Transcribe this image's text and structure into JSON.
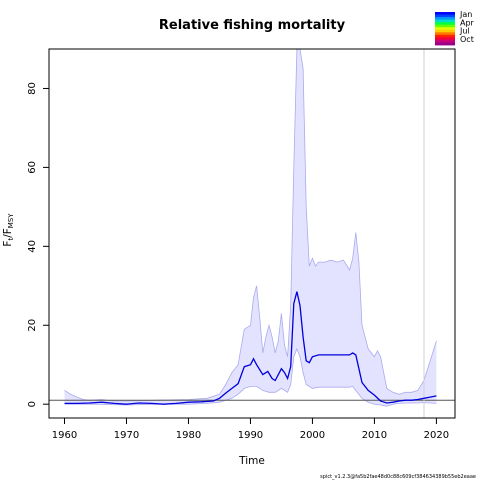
{
  "chart_data": {
    "type": "line",
    "title": "Relative fishing mortality",
    "xlabel": "Time",
    "ylabel": {
      "base": "F",
      "base_sub": "t",
      "sep": "/F",
      "sep_sub": "MSY"
    },
    "xlim": [
      1957.5,
      2023
    ],
    "ylim": [
      -3.5,
      90
    ],
    "xticks": [
      1960,
      1970,
      1980,
      1990,
      2000,
      2010,
      2020
    ],
    "yticks": [
      0,
      20,
      40,
      60,
      80
    ],
    "vline_x": 2018,
    "reference_line_y": 1,
    "colors": {
      "estimate": "#0000dd",
      "ci_fill": "#e3e3ff",
      "ci_line": "#aaaaee",
      "refline": "#555555",
      "vline": "#cfcfd8"
    },
    "series": [
      {
        "role": "estimate",
        "x": [
          1960,
          1962,
          1964,
          1966,
          1968,
          1970,
          1972,
          1974,
          1976,
          1978,
          1980,
          1982,
          1984,
          1985,
          1986,
          1987,
          1988,
          1989,
          1990,
          1990.5,
          1991,
          1992,
          1992.8,
          1993.5,
          1994,
          1995,
          1995.5,
          1996,
          1996.5,
          1997,
          1997.5,
          1998,
          1998.5,
          1999,
          1999.5,
          2000,
          2001,
          2002,
          2003,
          2004,
          2005,
          2006,
          2006.5,
          2007,
          2007.5,
          2008,
          2009,
          2010,
          2011,
          2012,
          2013,
          2014,
          2015,
          2016,
          2017,
          2018,
          2019,
          2020
        ],
        "y": [
          0.2,
          0.2,
          0.3,
          0.5,
          0.2,
          0.0,
          0.3,
          0.2,
          0.0,
          0.2,
          0.5,
          0.6,
          0.8,
          1.5,
          2.8,
          4.0,
          5.2,
          9.5,
          10.0,
          11.5,
          10.0,
          7.5,
          8.3,
          6.5,
          6.0,
          9.0,
          8.0,
          6.5,
          9.5,
          25.5,
          28.5,
          25.0,
          17.0,
          11.0,
          10.5,
          12.0,
          12.5,
          12.5,
          12.5,
          12.5,
          12.5,
          12.5,
          13.0,
          12.5,
          9.0,
          5.5,
          3.5,
          2.3,
          0.8,
          0.3,
          0.5,
          0.8,
          1.0,
          1.0,
          1.2,
          1.5,
          1.8,
          2.1
        ]
      },
      {
        "role": "ci_upper",
        "x": [
          1960,
          1961,
          1962,
          1963,
          1964,
          1966,
          1968,
          1970,
          1975,
          1980,
          1983,
          1985,
          1986,
          1987,
          1988,
          1989,
          1990,
          1990.5,
          1991,
          1991.5,
          1992,
          1992.5,
          1993,
          1993.5,
          1994,
          1994.5,
          1995,
          1995.5,
          1996,
          1996.5,
          1997,
          1997.5,
          1998,
          1998.5,
          1999,
          1999.5,
          2000,
          2000.5,
          2001,
          2002,
          2003,
          2004,
          2005,
          2006,
          2006.5,
          2007,
          2007.5,
          2008,
          2009,
          2010,
          2010.5,
          2011,
          2012,
          2013,
          2014,
          2015,
          2016,
          2017,
          2018,
          2019,
          2020
        ],
        "y": [
          3.5,
          2.5,
          1.8,
          1.2,
          1.0,
          1.2,
          0.8,
          0.8,
          1.0,
          1.2,
          1.5,
          2.5,
          5.0,
          8.0,
          10.0,
          19.0,
          20.0,
          27.0,
          30.0,
          22.0,
          13.0,
          17.0,
          20.0,
          17.0,
          13.0,
          16.0,
          23.0,
          15.0,
          12.0,
          25.0,
          60.0,
          90.0,
          90.0,
          85.0,
          50.0,
          35.0,
          37.0,
          35.0,
          36.0,
          36.0,
          36.5,
          36.0,
          36.5,
          34.0,
          37.0,
          43.5,
          36.0,
          20.0,
          14.0,
          12.0,
          13.5,
          12.0,
          4.0,
          3.0,
          2.5,
          3.0,
          3.0,
          3.5,
          6.0,
          11.0,
          16.0
        ]
      },
      {
        "role": "ci_lower",
        "x": [
          1960,
          1965,
          1970,
          1975,
          1980,
          1983,
          1985,
          1986,
          1987,
          1988,
          1989,
          1990,
          1991,
          1992,
          1993,
          1994,
          1995,
          1996,
          1996.5,
          1997,
          1997.5,
          1998,
          1998.5,
          1999,
          1999.5,
          2000,
          2001,
          2002,
          2003,
          2004,
          2005,
          2006,
          2006.5,
          2007,
          2008,
          2009,
          2010,
          2011,
          2012,
          2013,
          2014,
          2015,
          2016,
          2017,
          2018,
          2019,
          2020
        ],
        "y": [
          0.0,
          0.0,
          -0.2,
          0.0,
          0.0,
          0.2,
          0.5,
          1.0,
          1.5,
          2.5,
          4.0,
          4.5,
          4.5,
          3.5,
          3.0,
          3.0,
          4.0,
          3.0,
          5.0,
          12.0,
          14.0,
          12.0,
          8.0,
          5.0,
          4.5,
          4.0,
          4.3,
          4.3,
          4.3,
          4.3,
          4.3,
          4.3,
          4.5,
          3.5,
          1.5,
          0.5,
          0.0,
          -0.2,
          -0.5,
          0.0,
          0.2,
          0.3,
          0.3,
          0.3,
          0.4,
          0.3,
          0.2
        ]
      }
    ],
    "legend": {
      "labels": [
        "Jan",
        "Apr",
        "Jul",
        "Oct"
      ],
      "gradient_colors": [
        "#0000ff",
        "#0044ff",
        "#0099ff",
        "#00ddcc",
        "#00ff44",
        "#66ff00",
        "#ddff00",
        "#ffcc00",
        "#ff7700",
        "#ff2200",
        "#ee0044",
        "#cc0077",
        "#990088"
      ]
    }
  },
  "footer": "spict_v1.2.3@fa5b2fae48d0c88c609cf384634389b55eb2eaae"
}
